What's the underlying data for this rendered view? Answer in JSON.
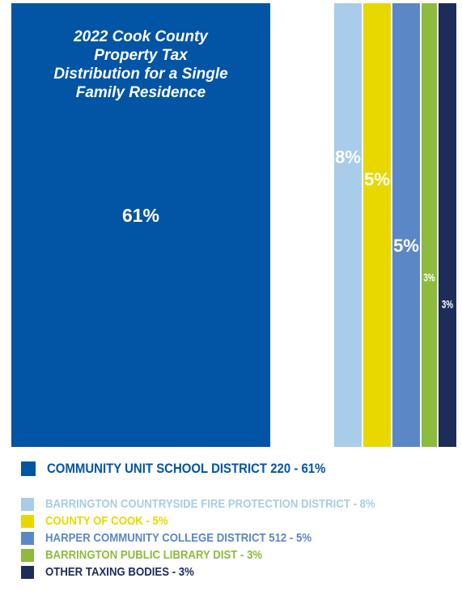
{
  "chart_data": {
    "type": "bar",
    "title": "2022 Cook County Property Tax Distribution for a Single Family Residence",
    "title_lines": [
      "2022 Cook County",
      "Property Tax",
      "Distribution for a Single",
      "Family Residence"
    ],
    "series": [
      {
        "name": "COMMUNITY UNIT SCHOOL DISTRICT 220",
        "value": 61,
        "label": "61%",
        "legend": "COMMUNITY UNIT SCHOOL DISTRICT 220 - 61%",
        "color": "#0254a5"
      },
      {
        "name": "BARRINGTON COUNTRYSIDE FIRE PROTECTION DISTRICT",
        "value": 8,
        "label": "8%",
        "legend": "BARRINGTON COUNTRYSIDE FIRE PROTECTION DISTRICT - 8%",
        "color": "#a8cce9"
      },
      {
        "name": "COUNTY OF COOK",
        "value": 5,
        "label": "5%",
        "legend": "COUNTY OF COOK - 5%",
        "color": "#e8d800"
      },
      {
        "name": "HARPER COMMUNITY COLLEGE DISTRICT 512",
        "value": 5,
        "label": "5%",
        "legend": "HARPER COMMUNITY COLLEGE DISTRICT 512 - 5%",
        "color": "#5b87c6"
      },
      {
        "name": "BARRINGTON PUBLIC LIBRARY DIST",
        "value": 3,
        "label": "3%",
        "legend": "BARRINGTON PUBLIC LIBRARY DIST - 3%",
        "color": "#8dbb3e"
      },
      {
        "name": "OTHER TAXING BODIES",
        "value": 3,
        "label": "3%",
        "legend": "OTHER TAXING BODIES - 3%",
        "color": "#1d2c58"
      }
    ],
    "legend_placement": "bottom",
    "grid": false
  }
}
